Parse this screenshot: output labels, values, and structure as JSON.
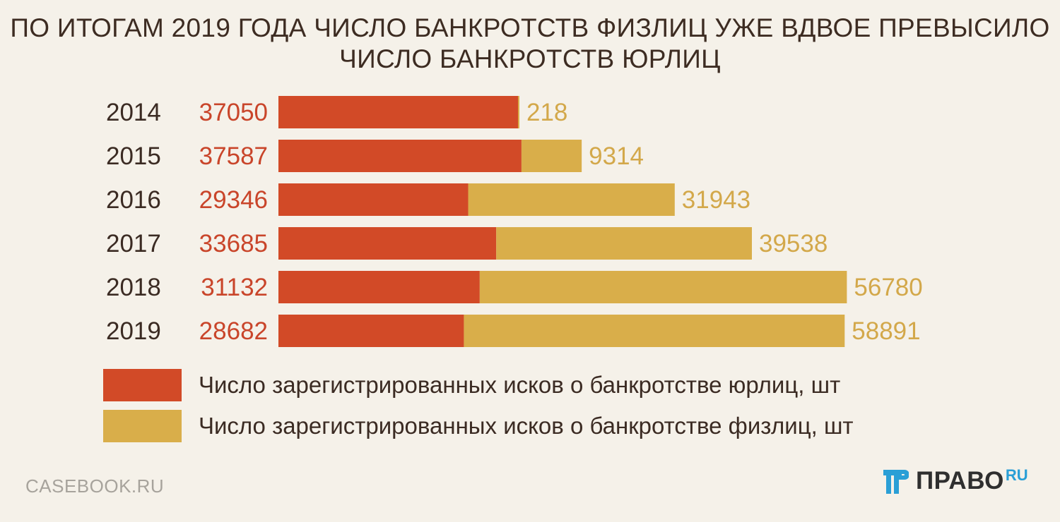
{
  "title": {
    "line1": "ПО ИТОГАМ 2019 ГОДА ЧИСЛО  БАНКРОТСТВ ФИЗЛИЦ УЖЕ ВДВОЕ ПРЕВЫСИЛО",
    "line2": "ЧИСЛО БАНКРОТСТВ ЮРЛИЦ"
  },
  "chart_data": {
    "type": "bar",
    "orientation": "horizontal",
    "stacked": true,
    "categories": [
      "2014",
      "2015",
      "2016",
      "2017",
      "2018",
      "2019"
    ],
    "series": [
      {
        "name": "Число зарегистрированных исков о банкротстве юрлиц, шт",
        "values": [
          37050,
          37587,
          29346,
          33685,
          31132,
          28682
        ],
        "color": "#d24a27",
        "label_color": "#c9452a"
      },
      {
        "name": "Число зарегистрированных исков о банкротстве физлиц, шт",
        "values": [
          218,
          9314,
          31943,
          39538,
          56780,
          58891
        ],
        "color": "#d9ae4a",
        "label_color": "#d3a84a"
      }
    ],
    "grid": false,
    "legend_position": "bottom-left"
  },
  "source": "CASEBOOK.RU",
  "logo": {
    "word": "ПРАВО",
    "suffix": "RU",
    "colors": {
      "mark": "#2a9fd6",
      "word": "#2f2f2f"
    }
  }
}
